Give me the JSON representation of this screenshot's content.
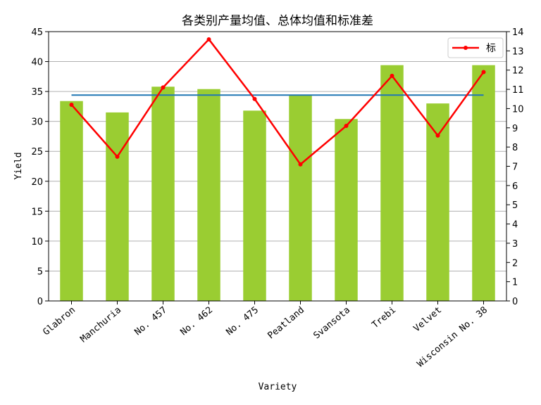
{
  "chart_data": {
    "type": "bar",
    "title": "各类别产量均值、总体均值和标准差",
    "xlabel": "Variety",
    "ylabel": "Yield",
    "categories": [
      "Glabron",
      "Manchuria",
      "No. 457",
      "No. 462",
      "No. 475",
      "Peatland",
      "Svansota",
      "Trebi",
      "Velvet",
      "Wisconsin No. 38"
    ],
    "bar_series": {
      "name": "",
      "color": "#9acd32",
      "values": [
        33.4,
        31.5,
        35.8,
        35.4,
        31.8,
        34.4,
        30.4,
        39.4,
        33.0,
        39.4
      ]
    },
    "overall_mean": {
      "value": 34.4,
      "color": "#1f77b4"
    },
    "std_series": {
      "name": "标",
      "color": "#ff0000",
      "values": [
        10.2,
        7.5,
        11.1,
        13.6,
        10.5,
        7.1,
        9.1,
        11.7,
        8.6,
        11.9
      ]
    },
    "ylim_left": [
      0,
      45
    ],
    "yticks_left": [
      0,
      5,
      10,
      15,
      20,
      25,
      30,
      35,
      40,
      45
    ],
    "ylim_right": [
      0,
      14
    ],
    "yticks_right": [
      0,
      1,
      2,
      3,
      4,
      5,
      6,
      7,
      8,
      9,
      10,
      11,
      12,
      13,
      14
    ],
    "grid": "horizontal",
    "legend_position": "top-right"
  }
}
